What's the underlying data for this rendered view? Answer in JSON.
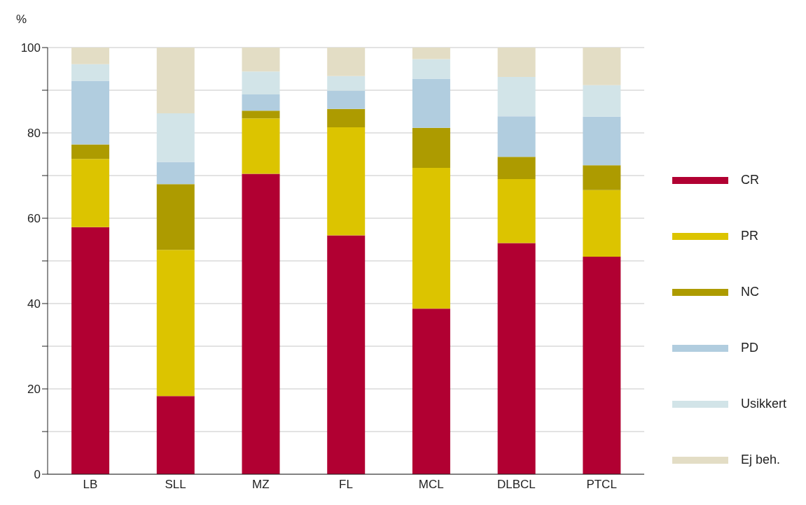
{
  "chart_data": {
    "type": "bar",
    "stacked": true,
    "ylabel": "%",
    "categories": [
      "LB",
      "SLL",
      "MZ",
      "FL",
      "MCL",
      "DLBCL",
      "PTCL"
    ],
    "series": [
      {
        "name": "CR",
        "color": "#b10032",
        "values": [
          57.9,
          18.3,
          70.4,
          56.0,
          38.8,
          54.2,
          51.0
        ]
      },
      {
        "name": "PR",
        "color": "#dcc400",
        "values": [
          16.0,
          34.3,
          13.0,
          25.3,
          33.0,
          15.0,
          15.6
        ]
      },
      {
        "name": "NC",
        "color": "#ad9b00",
        "values": [
          3.4,
          15.4,
          1.8,
          4.3,
          9.4,
          5.2,
          5.8
        ]
      },
      {
        "name": "PD",
        "color": "#b1cddf",
        "values": [
          14.9,
          5.2,
          3.8,
          4.3,
          11.5,
          9.5,
          11.4
        ]
      },
      {
        "name": "Usikkert",
        "color": "#d2e4e8",
        "values": [
          3.9,
          11.4,
          5.4,
          3.4,
          4.6,
          9.2,
          7.4
        ]
      },
      {
        "name": "Ej beh.",
        "color": "#e3ddc5",
        "values": [
          3.9,
          15.4,
          5.6,
          6.7,
          2.7,
          6.9,
          8.8
        ]
      }
    ],
    "ylim": [
      0,
      100
    ],
    "yticks": [
      0,
      {
        "value": 10,
        "label": null
      },
      20,
      {
        "value": 30,
        "label": null
      },
      40,
      {
        "value": 50,
        "label": null
      },
      60,
      {
        "value": 70,
        "label": null
      },
      80,
      {
        "value": 90,
        "label": null
      },
      100
    ],
    "grid": "y",
    "legend": "right"
  }
}
